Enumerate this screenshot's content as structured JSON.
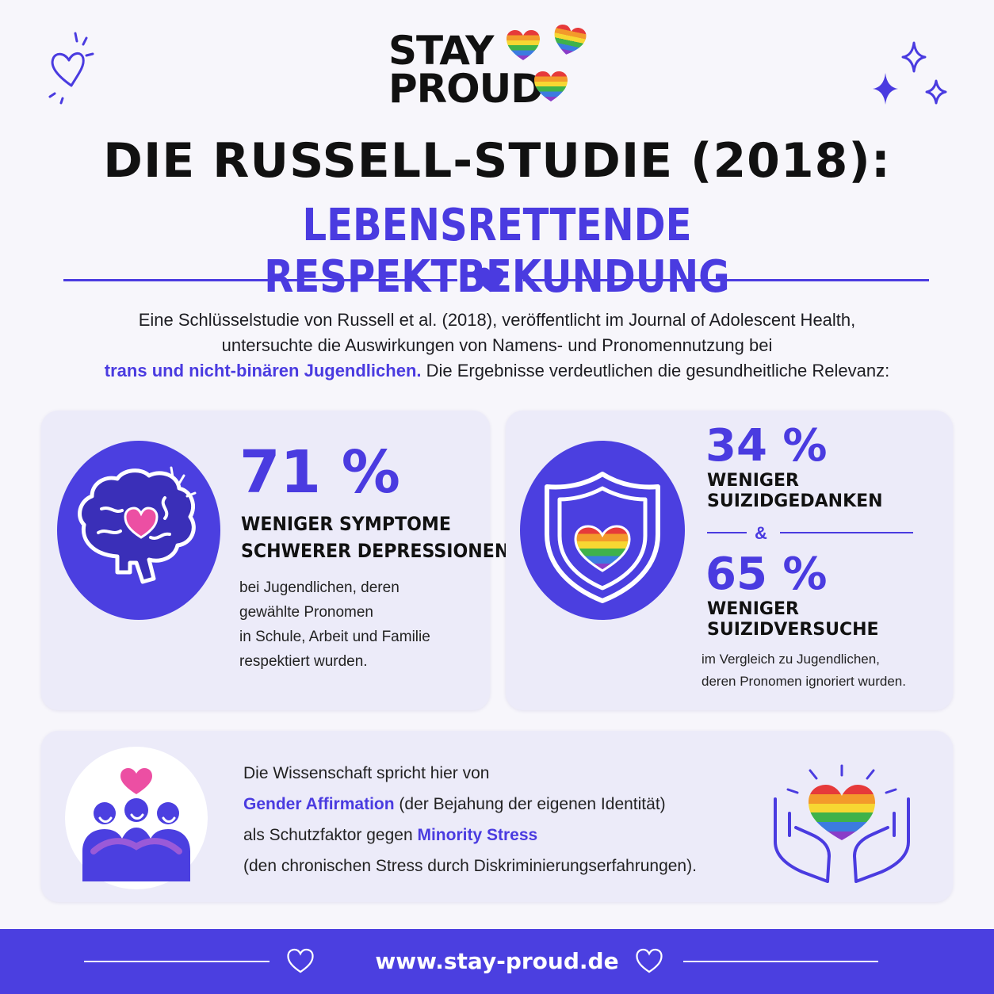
{
  "logo": {
    "line1": "STAY",
    "line2": "PROUD"
  },
  "title": {
    "line1": "DIE RUSSELL-STUDIE (2018):",
    "line2": "LEBENSRETTENDE RESPEKTBEKUNDUNG"
  },
  "intro": {
    "line1": "Eine Schlüsselstudie von Russell et al. (2018), veröffentlicht im Journal of Adolescent Health,",
    "line2": "untersuchte die Auswirkungen von Namens- und Pronomennutzung bei",
    "highlight": "trans und nicht-binären Jugendlichen.",
    "line3_rest": " Die Ergebnisse verdeutlichen die gesundheitliche Relevanz:"
  },
  "card_left": {
    "percent": "71 %",
    "heading1": "WENIGER SYMPTOME",
    "heading2": "SCHWERER DEPRESSIONEN",
    "body": [
      "bei Jugendlichen, deren",
      "gewählte Pronomen",
      "in Schule, Arbeit und Familie",
      "respektiert wurden."
    ],
    "icon": "brain-heart-icon"
  },
  "card_right": {
    "percent1": "34 %",
    "label1a": "WENIGER",
    "label1b": "SUIZIDGEDANKEN",
    "ampersand": "&",
    "percent2": "65 %",
    "label2a": "WENIGER",
    "label2b": "SUIZIDVERSUCHE",
    "body": [
      "im Vergleich zu Jugendlichen,",
      "deren Pronomen ignoriert wurden."
    ],
    "icon": "shield-rainbow-heart-icon"
  },
  "card_bottom": {
    "line1": "Die Wissenschaft spricht hier von",
    "term1": "Gender Affirmation",
    "line2_rest": " (der Bejahung der eigenen Identität)",
    "line3_pre": "als Schutzfaktor gegen ",
    "term2": "Minority Stress",
    "line4": "(den chronischen Stress durch Diskriminierungserfahrungen).",
    "icons": [
      "group-heart-icon",
      "hands-rainbow-heart-icon"
    ]
  },
  "footer": {
    "url": "www.stay-proud.de"
  },
  "colors": {
    "accent": "#4a3be0",
    "card": "#ecebf9",
    "background": "#f7f6fb",
    "pink": "#ec4fa3"
  }
}
